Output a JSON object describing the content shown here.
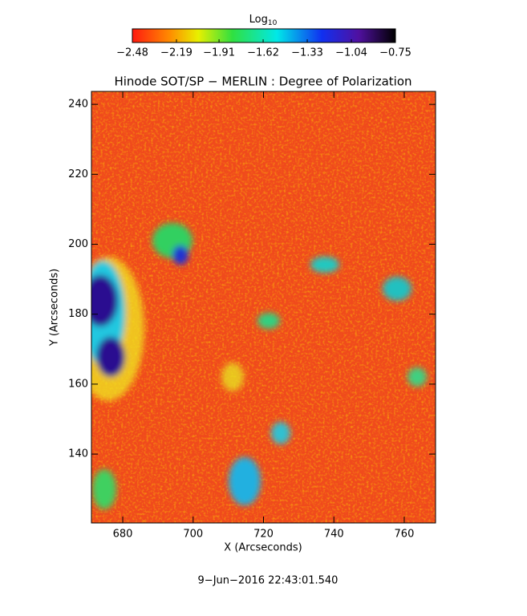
{
  "chart_data": {
    "type": "heatmap",
    "title": "Hinode SOT/SP − MERLIN : Degree of Polarization",
    "x_label": "X (Arcseconds)",
    "y_label": "Y (Arcseconds)",
    "footer": "9−Jun−2016 22:43:01.540",
    "colorbar_label": "Log",
    "colorbar_label_sub": "10",
    "colorbar_lim": [
      -2.48,
      -0.75
    ],
    "colorbar_ticks": [
      {
        "value": -2.48,
        "label": "−2.48"
      },
      {
        "value": -2.19,
        "label": "−2.19"
      },
      {
        "value": -1.91,
        "label": "−1.91"
      },
      {
        "value": -1.62,
        "label": "−1.62"
      },
      {
        "value": -1.33,
        "label": "−1.33"
      },
      {
        "value": -1.04,
        "label": "−1.04"
      },
      {
        "value": -0.75,
        "label": "−0.75"
      }
    ],
    "xlim": [
      671.1,
      768.9
    ],
    "xticks": [
      680,
      700,
      720,
      740,
      760
    ],
    "ylim": [
      120.3,
      243.7
    ],
    "yticks": [
      140,
      160,
      180,
      200,
      220,
      240
    ]
  }
}
